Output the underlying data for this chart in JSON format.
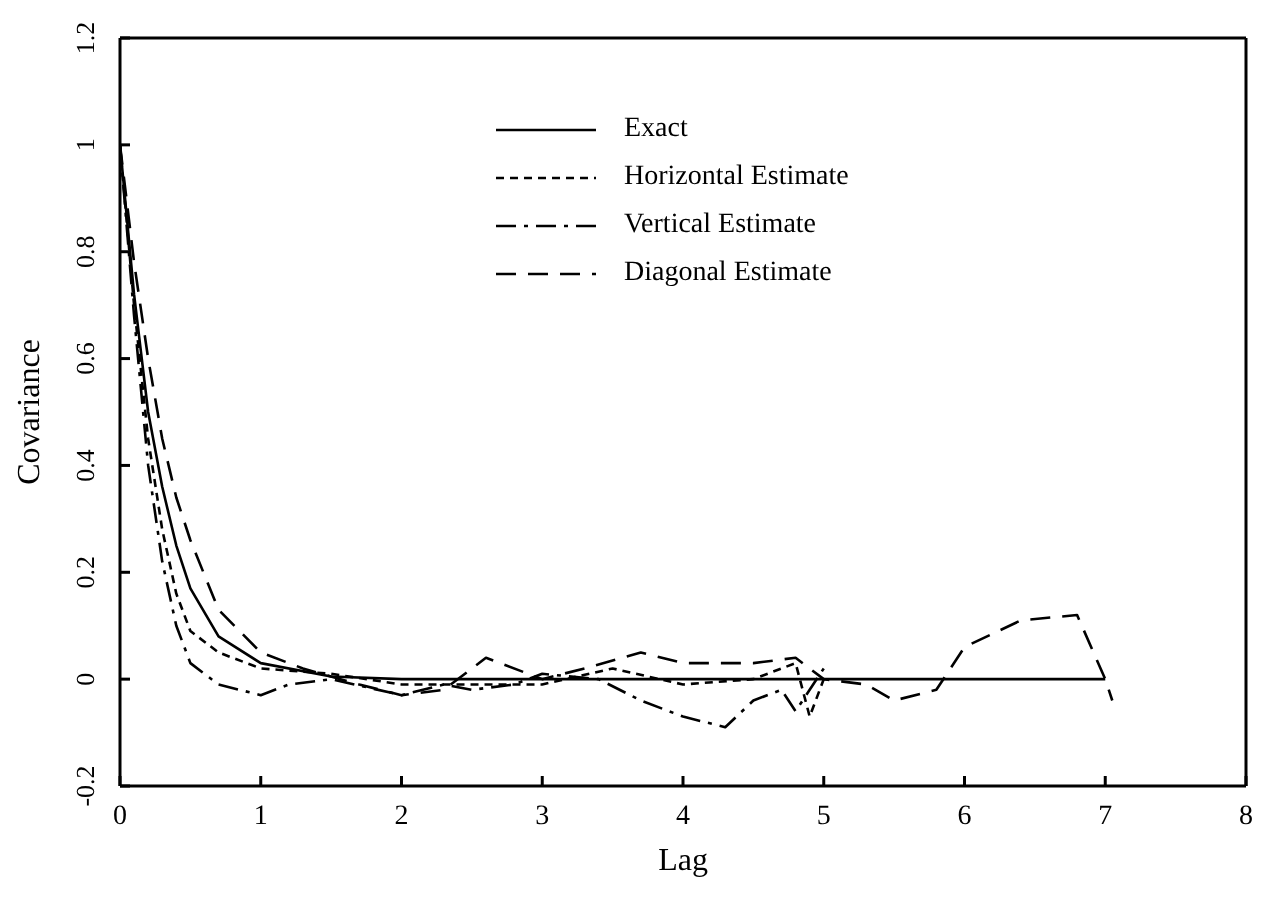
{
  "chart_data": {
    "type": "line",
    "xlabel": "Lag",
    "ylabel": "Covariance",
    "xlim": [
      0,
      8
    ],
    "xticks": [
      0,
      1,
      2,
      3,
      4,
      5,
      6,
      7,
      8
    ],
    "ylim": [
      -0.2,
      1.2
    ],
    "yticks": [
      -0.2,
      0,
      0.2,
      0.4,
      0.6,
      0.8,
      1,
      1.2
    ],
    "legend": "top",
    "marker": "none",
    "series": [
      {
        "name": "Exact",
        "color": "#000000",
        "line_style": "solid",
        "x": [
          0,
          0.1,
          0.2,
          0.3,
          0.4,
          0.5,
          0.7,
          1,
          1.5,
          2,
          7
        ],
        "values": [
          1,
          0.72,
          0.5,
          0.36,
          0.25,
          0.17,
          0.08,
          0.03,
          0.005,
          0,
          0
        ]
      },
      {
        "name": "Horizontal Estimate",
        "color": "#000000",
        "line_style": "dotted",
        "x": [
          0,
          0.1,
          0.2,
          0.3,
          0.4,
          0.5,
          0.7,
          1,
          1.5,
          2,
          2.5,
          3,
          3.5,
          4,
          4.5,
          4.8,
          4.9,
          5
        ],
        "values": [
          1,
          0.7,
          0.45,
          0.28,
          0.16,
          0.09,
          0.05,
          0.02,
          0.01,
          -0.01,
          -0.01,
          -0.01,
          0.02,
          -0.01,
          0,
          0.03,
          -0.07,
          0
        ]
      },
      {
        "name": "Vertical Estimate",
        "color": "#000000",
        "line_style": "dashdot",
        "x": [
          0,
          0.1,
          0.2,
          0.3,
          0.4,
          0.5,
          0.7,
          1,
          1.2,
          1.5,
          2,
          2.3,
          2.5,
          2.8,
          3,
          3.4,
          3.7,
          4,
          4.3,
          4.5,
          4.7,
          4.8,
          4.9,
          5
        ],
        "values": [
          1,
          0.68,
          0.4,
          0.22,
          0.1,
          0.03,
          -0.01,
          -0.03,
          -0.01,
          0,
          -0.03,
          -0.01,
          -0.02,
          -0.01,
          0.01,
          0,
          -0.04,
          -0.07,
          -0.09,
          -0.04,
          -0.02,
          -0.06,
          -0.02,
          0.02
        ]
      },
      {
        "name": "Diagonal Estimate",
        "color": "#000000",
        "line_style": "dashed",
        "x": [
          0,
          0.1,
          0.2,
          0.3,
          0.4,
          0.5,
          0.7,
          1,
          1.3,
          1.7,
          2,
          2.3,
          2.6,
          3,
          3.3,
          3.7,
          4,
          4.5,
          4.8,
          5,
          5.3,
          5.5,
          5.8,
          6,
          6.4,
          6.8,
          7,
          7.05
        ],
        "values": [
          1,
          0.78,
          0.6,
          0.45,
          0.34,
          0.26,
          0.13,
          0.05,
          0.02,
          -0.01,
          -0.03,
          -0.02,
          0.04,
          0,
          0.02,
          0.05,
          0.03,
          0.03,
          0.04,
          0,
          -0.01,
          -0.04,
          -0.02,
          0.06,
          0.11,
          0.12,
          0,
          -0.04
        ]
      }
    ]
  }
}
